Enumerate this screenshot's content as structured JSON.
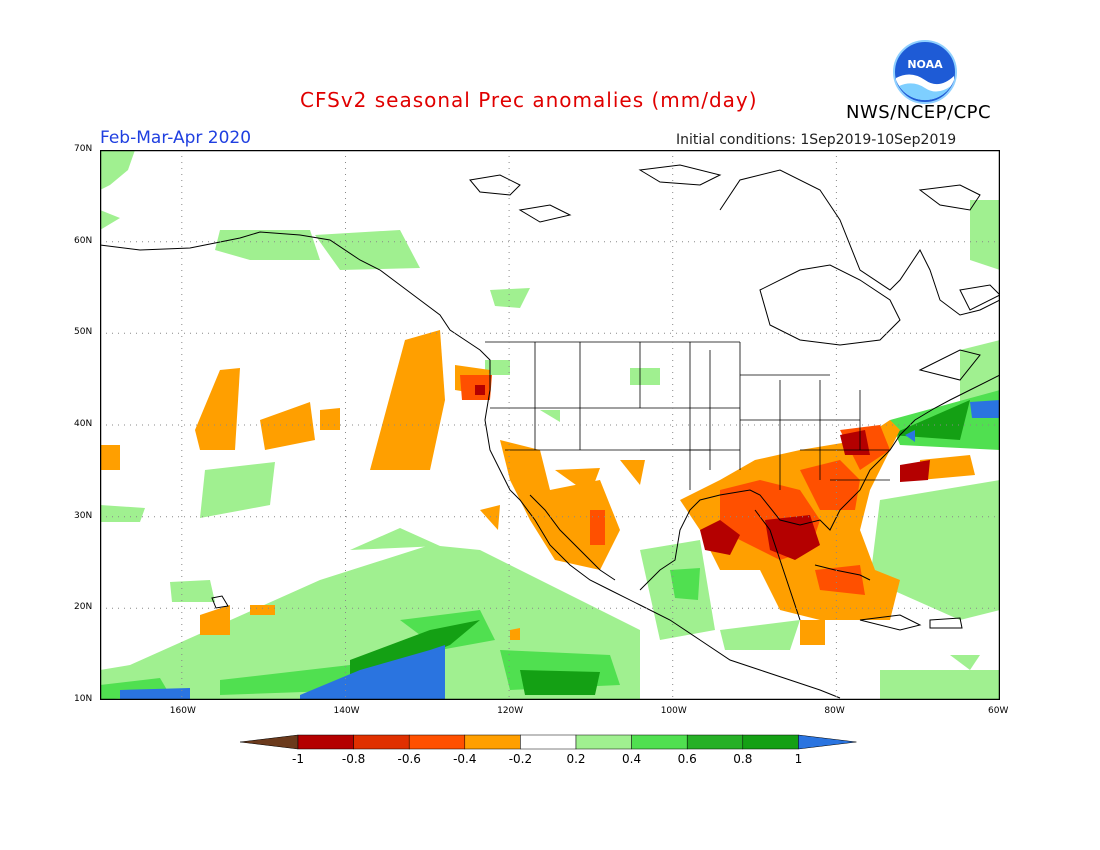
{
  "header": {
    "title": "CFSv2 seasonal Prec anomalies (mm/day)",
    "agency": "NWS/NCEP/CPC",
    "season": "Feb-Mar-Apr 2020",
    "initial_conditions": "Initial conditions: 1Sep2019-10Sep2019"
  },
  "logo": {
    "text": "NOAA"
  },
  "map": {
    "lat_labels": [
      "70N",
      "60N",
      "50N",
      "40N",
      "30N",
      "20N",
      "10N"
    ],
    "lon_labels": [
      "160W",
      "140W",
      "120W",
      "100W",
      "80W",
      "60W"
    ],
    "extent": {
      "lon_min": -170,
      "lon_max": -60,
      "lat_min": 10,
      "lat_max": 70
    }
  },
  "colorbar": {
    "labels": [
      "-1",
      "-0.8",
      "-0.6",
      "-0.4",
      "-0.2",
      "0.2",
      "0.4",
      "0.6",
      "0.8",
      "1"
    ],
    "colors": [
      "#6b3a1c",
      "#b40000",
      "#e03000",
      "#ff5000",
      "#ff9f00",
      "#ffffff",
      "#a0f090",
      "#50e050",
      "#26b026",
      "#14a014",
      "#2a74e0"
    ]
  }
}
